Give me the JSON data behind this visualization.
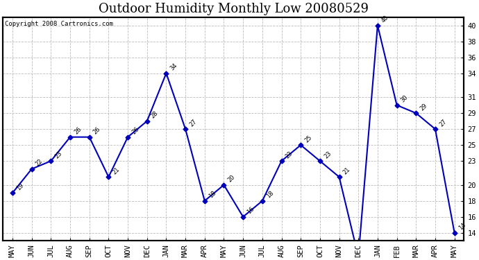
{
  "title": "Outdoor Humidity Monthly Low 20080529",
  "copyright": "Copyright 2008 Cartronics.com",
  "months": [
    "MAY",
    "JUN",
    "JUL",
    "AUG",
    "SEP",
    "OCT",
    "NOV",
    "DEC",
    "JAN",
    "MAR",
    "APR",
    "MAY",
    "JUN",
    "JUL",
    "AUG",
    "SEP",
    "OCT",
    "NOV",
    "DEC",
    "JAN",
    "FEB",
    "MAR",
    "APR",
    "MAY"
  ],
  "values": [
    19,
    22,
    23,
    26,
    26,
    21,
    26,
    28,
    34,
    27,
    18,
    20,
    16,
    18,
    23,
    25,
    23,
    21,
    11,
    40,
    30,
    29,
    27,
    14
  ],
  "line_color": "#0000bb",
  "marker": "D",
  "marker_size": 3.5,
  "ylim": [
    13,
    41
  ],
  "ytick_positions": [
    14,
    16,
    18,
    20,
    23,
    25,
    27,
    29,
    31,
    34,
    36,
    38,
    40
  ],
  "background_color": "#ffffff",
  "grid_color": "#bbbbbb",
  "title_fontsize": 13,
  "annot_fontsize": 6,
  "tick_fontsize": 7.5,
  "copyright_fontsize": 6.5
}
